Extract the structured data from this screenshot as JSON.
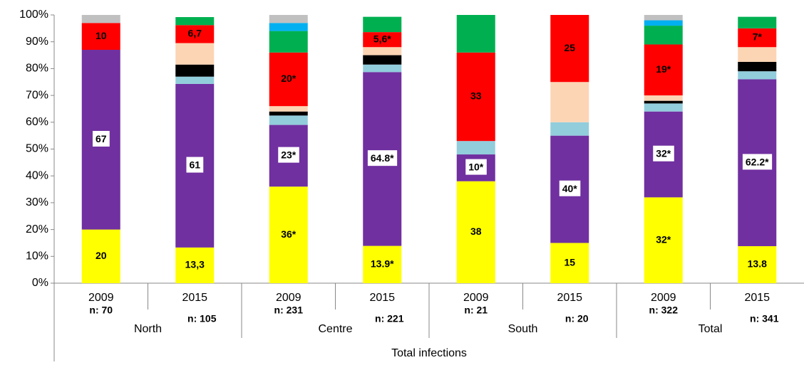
{
  "chart_data": {
    "type": "stacked_bar",
    "categories": [
      "2009",
      "2015",
      "2009",
      "2015",
      "2009",
      "2015",
      "2009",
      "2015"
    ],
    "sublabels": [
      "n: 70",
      "n: 105",
      "n: 231",
      "n: 221",
      "n: 21",
      "n: 20",
      "n: 322",
      "n: 341"
    ],
    "groups": [
      "North",
      "Centre",
      "South",
      "Total"
    ],
    "x_title": "Total infections",
    "ylim": [
      0,
      100
    ],
    "yticks": [
      {
        "value": 0,
        "label": "0%"
      },
      {
        "value": 10,
        "label": "10%"
      },
      {
        "value": 20,
        "label": "20%"
      },
      {
        "value": 30,
        "label": "30%"
      },
      {
        "value": 40,
        "label": "40%"
      },
      {
        "value": 50,
        "label": "50%"
      },
      {
        "value": 60,
        "label": "60%"
      },
      {
        "value": 70,
        "label": "70%"
      },
      {
        "value": 80,
        "label": "80%"
      },
      {
        "value": 90,
        "label": "90%"
      },
      {
        "value": 100,
        "label": "100%"
      }
    ],
    "series": [
      {
        "color": "#ffff00",
        "values": [
          20,
          13.3,
          36,
          13.9,
          38,
          15,
          32,
          13.8
        ],
        "value_labels": [
          "20",
          "13,3",
          "36*",
          "13.9*",
          "38",
          "15",
          "32*",
          "13.8"
        ]
      },
      {
        "color": "#7030a0",
        "values": [
          67,
          61,
          23,
          64.8,
          10,
          40,
          32,
          62.2
        ],
        "value_labels": [
          "67",
          "61",
          "23*",
          "64.8*",
          "10*",
          "40*",
          "32*",
          "62.2*"
        ]
      },
      {
        "color": "#92cddc",
        "values": [
          null,
          2.7,
          3.5,
          2.8,
          5,
          5,
          3,
          3
        ]
      },
      {
        "color": "#000000",
        "values": [
          null,
          4.5,
          1.5,
          3.5,
          null,
          null,
          1,
          3.5
        ]
      },
      {
        "color": "#fcd5b5",
        "values": [
          null,
          8,
          2,
          3,
          null,
          15,
          2,
          5.5
        ]
      },
      {
        "color": "#ff0000",
        "values": [
          10,
          6.7,
          20,
          5.6,
          33,
          25,
          19,
          7
        ],
        "value_labels": [
          "10",
          "6,7",
          "20*",
          "5,6*",
          "33",
          "25",
          "19*",
          "7*"
        ]
      },
      {
        "color": "#00b050",
        "values": [
          null,
          3,
          8,
          5.7,
          14,
          null,
          7,
          4.3
        ]
      },
      {
        "color": "#00b0f0",
        "values": [
          null,
          null,
          3,
          null,
          null,
          null,
          2,
          null
        ]
      },
      {
        "color": "#c0c0c0",
        "values": [
          3,
          null,
          3,
          null,
          null,
          null,
          2,
          null
        ]
      }
    ]
  }
}
